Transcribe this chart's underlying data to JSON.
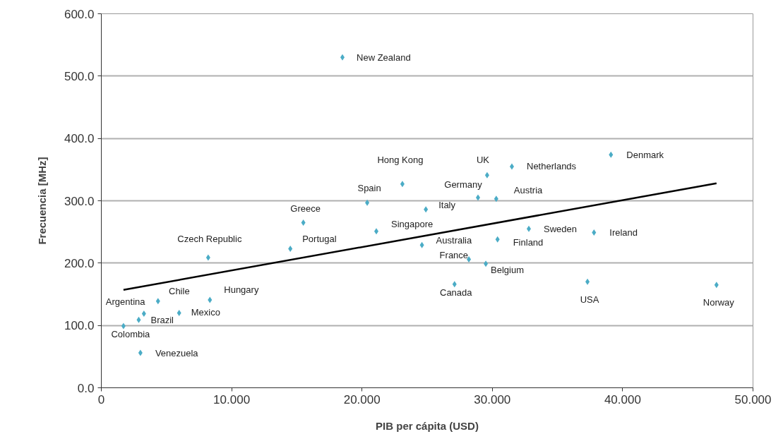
{
  "chart_data": {
    "type": "scatter",
    "xlabel": "PIB per cápita (USD)",
    "ylabel": "Frecuencia [MHz]",
    "xlim": [
      0,
      50
    ],
    "ylim": [
      0,
      600
    ],
    "xticks": [
      0,
      {
        "value": 10,
        "label": "10.000"
      },
      {
        "value": 20,
        "label": "20.000"
      },
      {
        "value": 30,
        "label": "30.000"
      },
      {
        "value": 40,
        "label": "40.000"
      },
      {
        "value": 50,
        "label": "50.000"
      }
    ],
    "yticks": [
      {
        "value": 0,
        "label": "0.0"
      },
      {
        "value": 100,
        "label": "100.0"
      },
      {
        "value": 200,
        "label": "200.0"
      },
      {
        "value": 300,
        "label": "300.0"
      },
      {
        "value": 400,
        "label": "400.0"
      },
      {
        "value": 500,
        "label": "500.0"
      },
      {
        "value": 600,
        "label": "600.0"
      }
    ],
    "grid": "y",
    "series": [
      {
        "marker": "diamond",
        "color": "#4bacc6",
        "x": [
          18.5,
          23.1,
          20.4,
          15.5,
          8.2,
          14.5,
          21.1,
          24.9,
          24.6,
          28.2,
          27.1,
          28.9,
          29.6,
          30.3,
          31.5,
          39.1,
          29.5,
          30.4,
          32.8,
          37.8,
          37.3,
          47.2,
          3.27,
          4.35,
          2.87,
          5.97,
          8.33,
          1.7,
          3.0
        ],
        "values": [
          530,
          327,
          297,
          265,
          209,
          223,
          251,
          286,
          229,
          206,
          166,
          305,
          341,
          303,
          355,
          374,
          199,
          238,
          255,
          249,
          170,
          165,
          119,
          139,
          109,
          120,
          141,
          99,
          56
        ]
      },
      {
        "type": "line",
        "marker": "none",
        "color": "#000000",
        "x": [
          1.7,
          47.2
        ],
        "values": [
          157,
          328
        ]
      }
    ],
    "annotations": [
      {
        "text": "New Zealand",
        "x": 18.5,
        "y": 530
      },
      {
        "text": "Hong Kong",
        "x": 23.1,
        "y": 327
      },
      {
        "text": "Spain",
        "x": 20.4,
        "y": 297
      },
      {
        "text": "Greece",
        "x": 15.5,
        "y": 265
      },
      {
        "text": "Czech Republic",
        "x": 8.2,
        "y": 209
      },
      {
        "text": "Portugal",
        "x": 14.5,
        "y": 223
      },
      {
        "text": "Singapore",
        "x": 21.1,
        "y": 251
      },
      {
        "text": "Italy",
        "x": 24.9,
        "y": 286
      },
      {
        "text": "Australia",
        "x": 24.6,
        "y": 229
      },
      {
        "text": "France",
        "x": 28.2,
        "y": 206
      },
      {
        "text": "Canada",
        "x": 27.1,
        "y": 166
      },
      {
        "text": "Germany",
        "x": 28.9,
        "y": 305
      },
      {
        "text": "UK",
        "x": 29.6,
        "y": 341
      },
      {
        "text": "Austria",
        "x": 30.3,
        "y": 303
      },
      {
        "text": "Netherlands",
        "x": 31.5,
        "y": 355
      },
      {
        "text": "Denmark",
        "x": 39.1,
        "y": 374
      },
      {
        "text": "Belgium",
        "x": 29.5,
        "y": 199
      },
      {
        "text": "Finland",
        "x": 30.4,
        "y": 238
      },
      {
        "text": "Sweden",
        "x": 32.8,
        "y": 255
      },
      {
        "text": "Ireland",
        "x": 37.8,
        "y": 249
      },
      {
        "text": "USA",
        "x": 37.3,
        "y": 170
      },
      {
        "text": "Norway",
        "x": 47.2,
        "y": 165
      },
      {
        "text": "Argentina",
        "x": 3.27,
        "y": 119
      },
      {
        "text": "Chile",
        "x": 4.35,
        "y": 139
      },
      {
        "text": "Brazil",
        "x": 2.87,
        "y": 109
      },
      {
        "text": "Mexico",
        "x": 5.97,
        "y": 120
      },
      {
        "text": "Hungary",
        "x": 8.33,
        "y": 141
      },
      {
        "text": "Colombia",
        "x": 1.7,
        "y": 99
      },
      {
        "text": "Venezuela",
        "x": 3.0,
        "y": 56
      }
    ]
  }
}
